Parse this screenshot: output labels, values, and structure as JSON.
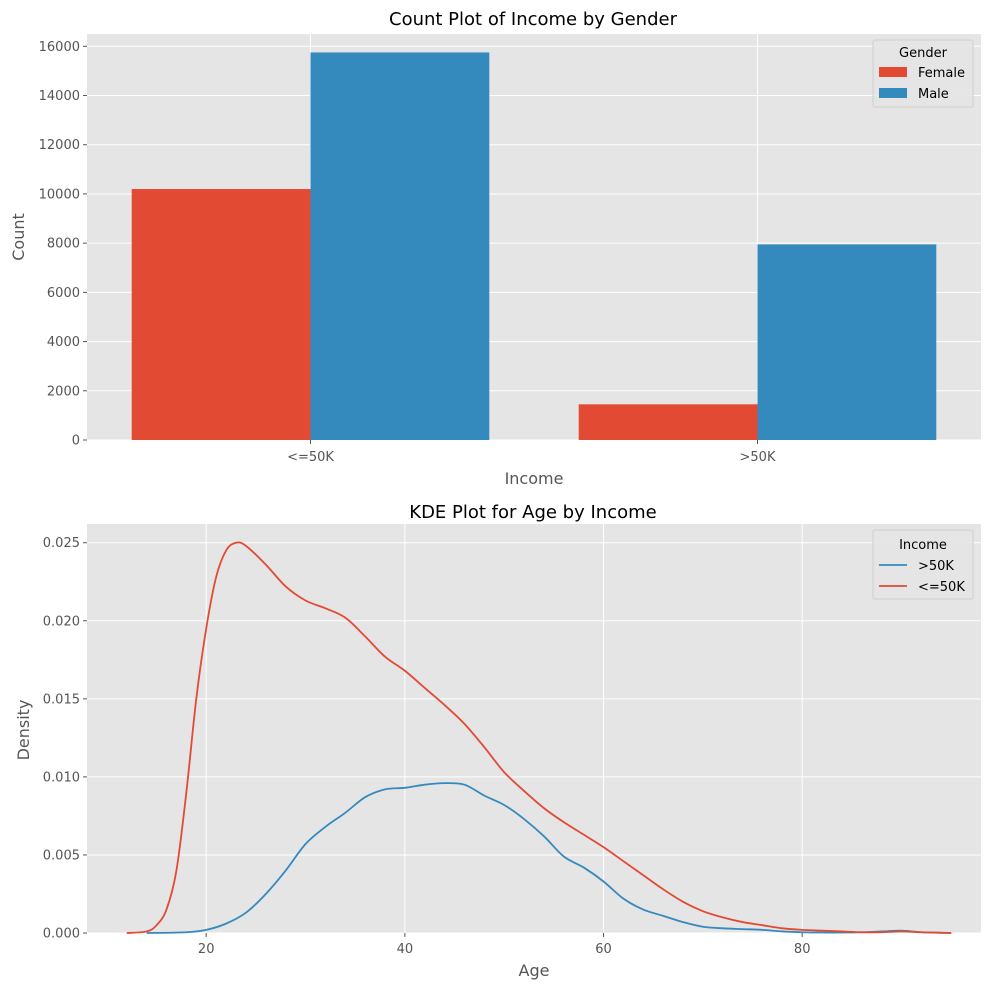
{
  "chart_data": [
    {
      "type": "bar",
      "title": "Count Plot of Income by Gender",
      "xlabel": "Income",
      "ylabel": "Count",
      "categories": [
        "<=50K",
        ">50K"
      ],
      "ylim": [
        0,
        16500
      ],
      "yticks": [
        0,
        2000,
        4000,
        6000,
        8000,
        10000,
        12000,
        14000,
        16000
      ],
      "grid": true,
      "legend": {
        "title": "Gender",
        "placement": "top-right"
      },
      "series": [
        {
          "name": "Female",
          "color": "#E24A33",
          "values": [
            10200,
            1450
          ]
        },
        {
          "name": "Male",
          "color": "#348ABD",
          "values": [
            15750,
            7950
          ]
        }
      ]
    },
    {
      "type": "line",
      "title": "KDE Plot for Age by Income",
      "xlabel": "Age",
      "ylabel": "Density",
      "xlim": [
        8,
        98
      ],
      "ylim": [
        0,
        0.0262
      ],
      "xticks": [
        20,
        40,
        60,
        80
      ],
      "yticks": [
        "0.000",
        "0.005",
        "0.010",
        "0.015",
        "0.020",
        "0.025"
      ],
      "grid": true,
      "legend": {
        "title": "Income",
        "placement": "top-right"
      },
      "series": [
        {
          "name": ">50K",
          "color": "#348ABD",
          "x": [
            14,
            18,
            20,
            22,
            24,
            26,
            28,
            30,
            32,
            34,
            36,
            38,
            40,
            42,
            44,
            46,
            48,
            50,
            52,
            54,
            56,
            58,
            60,
            62,
            64,
            66,
            68,
            70,
            72,
            74,
            76,
            78,
            80,
            82,
            84,
            86,
            88,
            90,
            92,
            95
          ],
          "y": [
            0.0,
            5e-05,
            0.0002,
            0.0006,
            0.0013,
            0.0025,
            0.004,
            0.0057,
            0.0068,
            0.0077,
            0.0087,
            0.0092,
            0.0093,
            0.0095,
            0.0096,
            0.0095,
            0.0088,
            0.0082,
            0.0073,
            0.0062,
            0.0049,
            0.0042,
            0.0033,
            0.0022,
            0.0015,
            0.0011,
            0.0007,
            0.0004,
            0.0003,
            0.00025,
            0.0002,
            0.0001,
            5e-05,
            3e-05,
            3e-05,
            5e-05,
            0.0001,
            0.00015,
            5e-05,
            0.0
          ]
        },
        {
          "name": "<=50K",
          "color": "#E24A33",
          "x": [
            12,
            14,
            15,
            16,
            17,
            18,
            19,
            20,
            21,
            22,
            23,
            24,
            26,
            28,
            30,
            32,
            34,
            36,
            38,
            40,
            42,
            44,
            46,
            48,
            50,
            52,
            54,
            56,
            58,
            60,
            62,
            64,
            66,
            68,
            70,
            72,
            74,
            76,
            78,
            80,
            82,
            84,
            86,
            88,
            90,
            92,
            95
          ],
          "y": [
            0.0,
            0.0001,
            0.0005,
            0.0015,
            0.004,
            0.009,
            0.015,
            0.0195,
            0.0228,
            0.0245,
            0.025,
            0.0248,
            0.0236,
            0.0222,
            0.0213,
            0.0208,
            0.0202,
            0.019,
            0.0177,
            0.0168,
            0.0157,
            0.0146,
            0.0134,
            0.0119,
            0.0103,
            0.0091,
            0.008,
            0.0071,
            0.0063,
            0.0055,
            0.0046,
            0.0037,
            0.0028,
            0.002,
            0.0014,
            0.001,
            0.0007,
            0.0005,
            0.0003,
            0.0002,
            0.00015,
            0.0001,
            5e-05,
            5e-05,
            0.0001,
            5e-05,
            0.0
          ]
        }
      ]
    }
  ]
}
